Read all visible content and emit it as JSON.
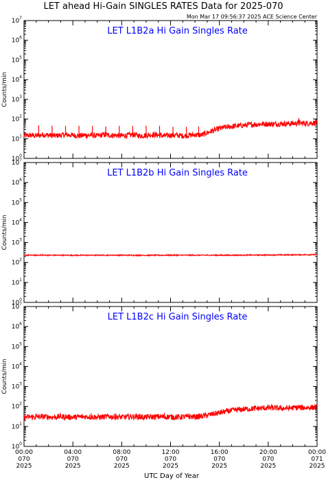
{
  "header": {
    "title": "LET ahead Hi-Gain SINGLES RATES Data for 2025-070",
    "timestamp": "Mon Mar 17 09:56:37 2025 ACE Science Center"
  },
  "colors": {
    "series": "#ff0000",
    "panel_title": "#0000ff",
    "axes": "#000000"
  },
  "chart_data": [
    {
      "type": "line",
      "title": "LET L1B2a Hi Gain Singles Rate",
      "ylabel": "Counts/min",
      "xlabel": "",
      "yscale": "log",
      "ylim": [
        1,
        10000000
      ],
      "xlim": [
        0,
        24
      ],
      "x_unit": "hours of 2025-070 (UTC)",
      "grid": false,
      "series": [
        {
          "x": [
            0,
            0.5,
            1,
            1.5,
            2,
            2.5,
            3,
            3.5,
            4,
            4.5,
            5,
            5.5,
            6,
            6.5,
            7,
            7.5,
            8,
            8.5,
            9,
            9.5,
            10,
            10.5,
            11,
            11.5,
            12,
            12.5,
            13,
            13.5,
            14,
            14.5,
            15,
            15.5,
            16,
            16.5,
            17,
            17.5,
            18,
            18.5,
            19,
            19.5,
            20,
            20.5,
            21,
            21.5,
            22,
            22.5,
            23,
            23.5,
            24
          ],
          "values": [
            14,
            15,
            14,
            16,
            15,
            14,
            15,
            16,
            15,
            14,
            15,
            15,
            14,
            16,
            15,
            15,
            14,
            15,
            16,
            14,
            15,
            16,
            15,
            14,
            15,
            15,
            14,
            15,
            16,
            15,
            20,
            26,
            33,
            38,
            42,
            45,
            48,
            52,
            54,
            56,
            56,
            55,
            58,
            57,
            60,
            62,
            60,
            63,
            65
          ],
          "spikes": [
            {
              "x": 1.2,
              "value": 48
            },
            {
              "x": 2.3,
              "value": 45
            },
            {
              "x": 3.4,
              "value": 45
            },
            {
              "x": 4.5,
              "value": 45
            },
            {
              "x": 5.6,
              "value": 45
            },
            {
              "x": 6.7,
              "value": 42
            },
            {
              "x": 7.8,
              "value": 45
            },
            {
              "x": 8.9,
              "value": 45
            },
            {
              "x": 10.0,
              "value": 45
            },
            {
              "x": 11.1,
              "value": 45
            },
            {
              "x": 12.2,
              "value": 40
            },
            {
              "x": 13.3,
              "value": 40
            },
            {
              "x": 14.3,
              "value": 42
            },
            {
              "x": 22.5,
              "value": 110
            }
          ]
        }
      ]
    },
    {
      "type": "line",
      "title": "LET L1B2b Hi Gain Singles Rate",
      "ylabel": "Counts/min",
      "xlabel": "",
      "yscale": "log",
      "ylim": [
        1,
        10000000
      ],
      "xlim": [
        0,
        24
      ],
      "x_unit": "hours of 2025-070 (UTC)",
      "grid": false,
      "series": [
        {
          "x": [
            0,
            2,
            4,
            6,
            8,
            10,
            12,
            14,
            16,
            18,
            20,
            22,
            24
          ],
          "values": [
            230,
            230,
            228,
            230,
            230,
            228,
            230,
            230,
            230,
            232,
            235,
            240,
            245
          ],
          "spikes": [
            {
              "x": 1.5,
              "value": 270
            },
            {
              "x": 12.5,
              "value": 260
            },
            {
              "x": 18.5,
              "value": 265
            },
            {
              "x": 23.5,
              "value": 275
            }
          ]
        }
      ]
    },
    {
      "type": "line",
      "title": "LET L1B2c Hi Gain Singles Rate",
      "ylabel": "Counts/min",
      "xlabel": "UTC Day of Year",
      "yscale": "log",
      "ylim": [
        1,
        10000000
      ],
      "xlim": [
        0,
        24
      ],
      "x_unit": "hours of 2025-070 (UTC)",
      "grid": false,
      "x_ticks": [
        {
          "x": 0,
          "label": [
            "00:00",
            "070",
            "2025"
          ]
        },
        {
          "x": 4,
          "label": [
            "04:00",
            "070",
            "2025"
          ]
        },
        {
          "x": 8,
          "label": [
            "08:00",
            "070",
            "2025"
          ]
        },
        {
          "x": 12,
          "label": [
            "12:00",
            "070",
            "2025"
          ]
        },
        {
          "x": 16,
          "label": [
            "16:00",
            "070",
            "2025"
          ]
        },
        {
          "x": 20,
          "label": [
            "20:00",
            "070",
            "2025"
          ]
        },
        {
          "x": 24,
          "label": [
            "00:00",
            "071",
            "2025"
          ]
        }
      ],
      "series": [
        {
          "x": [
            0,
            0.5,
            1,
            1.5,
            2,
            2.5,
            3,
            3.5,
            4,
            4.5,
            5,
            5.5,
            6,
            6.5,
            7,
            7.5,
            8,
            8.5,
            9,
            9.5,
            10,
            10.5,
            11,
            11.5,
            12,
            12.5,
            13,
            13.5,
            14,
            14.5,
            15,
            15.5,
            16,
            16.5,
            17,
            17.5,
            18,
            18.5,
            19,
            19.5,
            20,
            20.5,
            21,
            21.5,
            22,
            22.5,
            23,
            23.5,
            24
          ],
          "values": [
            28,
            30,
            29,
            31,
            30,
            29,
            31,
            30,
            29,
            30,
            31,
            30,
            29,
            30,
            31,
            30,
            29,
            30,
            31,
            30,
            29,
            30,
            31,
            30,
            30,
            29,
            30,
            31,
            30,
            32,
            36,
            42,
            48,
            55,
            62,
            68,
            72,
            76,
            80,
            82,
            85,
            84,
            82,
            80,
            85,
            88,
            86,
            88,
            90
          ],
          "spikes": [
            {
              "x": 1.0,
              "value": 45
            },
            {
              "x": 3.0,
              "value": 42
            },
            {
              "x": 5.5,
              "value": 45
            },
            {
              "x": 7.5,
              "value": 45
            },
            {
              "x": 9.5,
              "value": 42
            },
            {
              "x": 11.5,
              "value": 48
            },
            {
              "x": 13.5,
              "value": 45
            },
            {
              "x": 22.5,
              "value": 120
            }
          ]
        }
      ]
    }
  ]
}
